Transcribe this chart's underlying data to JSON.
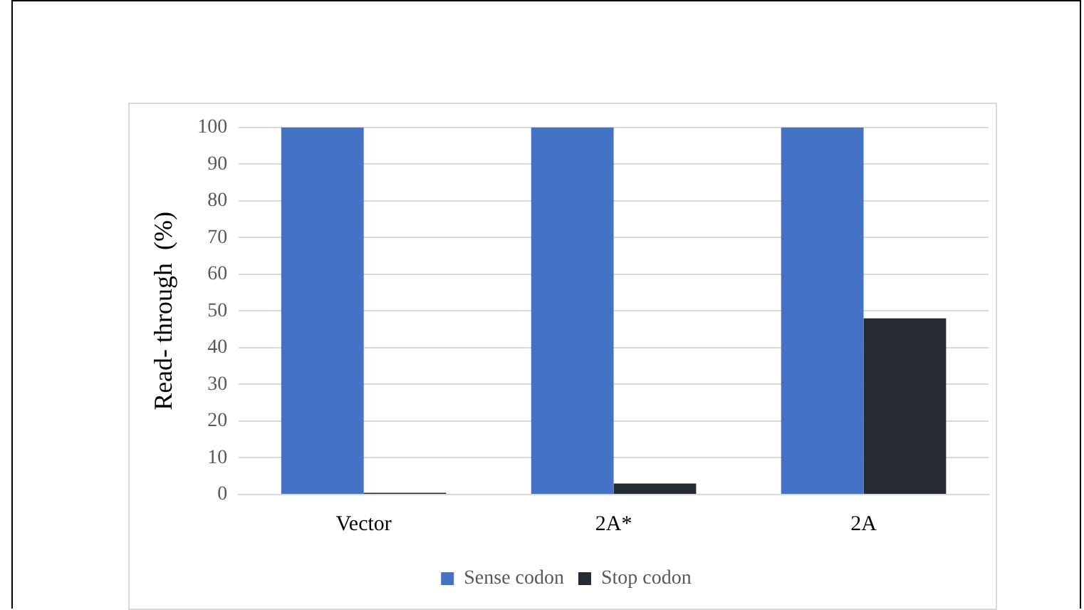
{
  "chart_data": {
    "type": "bar",
    "ylabel": "Read- through  (%)",
    "categories": [
      "Vector",
      "2A*",
      "2A"
    ],
    "series": [
      {
        "name": "Sense codon",
        "color": "#4472c4",
        "values": [
          100,
          100,
          100
        ]
      },
      {
        "name": "Stop codon",
        "color": "#262b33",
        "values": [
          0.5,
          3,
          48
        ]
      }
    ],
    "ylim": [
      0,
      100
    ],
    "yticks": [
      0,
      10,
      20,
      30,
      40,
      50,
      60,
      70,
      80,
      90,
      100
    ],
    "grid": "y",
    "legend": "bottom"
  }
}
